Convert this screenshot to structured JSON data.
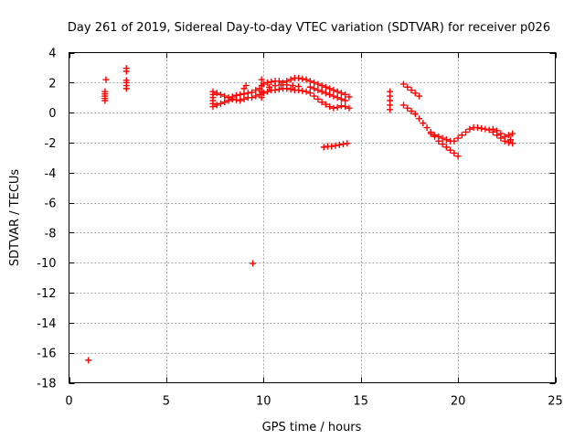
{
  "chart_data": {
    "type": "scatter",
    "title": "Day 261 of 2019, Sidereal Day-to-day VTEC variation (SDTVAR) for receiver p026",
    "xlabel": "GPS time / hours",
    "ylabel": "SDTVAR / TECUs",
    "xlim": [
      0,
      25
    ],
    "ylim": [
      -18,
      4
    ],
    "xticks": [
      0,
      5,
      10,
      15,
      20,
      25
    ],
    "yticks": [
      -18,
      -16,
      -14,
      -12,
      -10,
      -8,
      -6,
      -4,
      -2,
      0,
      2,
      4
    ],
    "grid": true,
    "marker": "+",
    "series_color": "#ff0000",
    "series": [
      {
        "name": "SDTVAR",
        "points": [
          [
            1.0,
            -16.5
          ],
          [
            9.45,
            -10.05
          ],
          [
            1.85,
            0.8
          ],
          [
            1.85,
            0.95
          ],
          [
            1.85,
            1.1
          ],
          [
            1.85,
            1.25
          ],
          [
            1.85,
            1.4
          ],
          [
            1.9,
            2.2
          ],
          [
            2.95,
            1.6
          ],
          [
            2.95,
            1.8
          ],
          [
            2.95,
            2.0
          ],
          [
            2.95,
            2.15
          ],
          [
            2.95,
            2.75
          ],
          [
            2.95,
            2.95
          ],
          [
            7.4,
            0.4
          ],
          [
            7.4,
            0.6
          ],
          [
            7.4,
            0.8
          ],
          [
            7.4,
            1.0
          ],
          [
            7.4,
            1.2
          ],
          [
            7.4,
            1.4
          ],
          [
            7.6,
            0.5
          ],
          [
            7.8,
            0.6
          ],
          [
            8.0,
            0.7
          ],
          [
            8.2,
            0.8
          ],
          [
            8.4,
            0.9
          ],
          [
            8.6,
            0.85
          ],
          [
            7.6,
            1.3
          ],
          [
            7.8,
            1.2
          ],
          [
            8.0,
            1.1
          ],
          [
            8.2,
            1.0
          ],
          [
            8.4,
            1.05
          ],
          [
            8.6,
            1.15
          ],
          [
            8.8,
            0.8
          ],
          [
            9.0,
            0.9
          ],
          [
            9.2,
            1.0
          ],
          [
            9.4,
            1.0
          ],
          [
            9.6,
            1.1
          ],
          [
            9.8,
            1.2
          ],
          [
            8.8,
            1.2
          ],
          [
            9.0,
            1.25
          ],
          [
            9.2,
            1.3
          ],
          [
            9.4,
            1.35
          ],
          [
            9.6,
            1.5
          ],
          [
            9.8,
            1.6
          ],
          [
            9.1,
            1.8
          ],
          [
            9.0,
            1.6
          ],
          [
            9.9,
            1.0
          ],
          [
            9.9,
            1.4
          ],
          [
            9.9,
            1.8
          ],
          [
            9.9,
            2.2
          ],
          [
            10.0,
            1.3
          ],
          [
            10.2,
            1.4
          ],
          [
            10.4,
            1.5
          ],
          [
            10.6,
            1.5
          ],
          [
            10.8,
            1.55
          ],
          [
            11.0,
            1.6
          ],
          [
            11.2,
            1.6
          ],
          [
            11.4,
            1.55
          ],
          [
            11.6,
            1.5
          ],
          [
            11.8,
            1.5
          ],
          [
            12.0,
            1.45
          ],
          [
            12.2,
            1.4
          ],
          [
            10.0,
            1.9
          ],
          [
            10.2,
            2.0
          ],
          [
            10.4,
            2.05
          ],
          [
            10.6,
            2.1
          ],
          [
            10.8,
            2.1
          ],
          [
            11.0,
            2.0
          ],
          [
            11.2,
            2.1
          ],
          [
            11.4,
            2.2
          ],
          [
            11.6,
            2.3
          ],
          [
            11.8,
            2.3
          ],
          [
            12.0,
            2.25
          ],
          [
            12.2,
            2.2
          ],
          [
            10.3,
            1.7
          ],
          [
            10.6,
            1.8
          ],
          [
            10.9,
            1.85
          ],
          [
            11.2,
            1.85
          ],
          [
            11.5,
            1.8
          ],
          [
            11.8,
            1.75
          ],
          [
            12.4,
            2.1
          ],
          [
            12.6,
            2.0
          ],
          [
            12.8,
            1.9
          ],
          [
            13.0,
            1.8
          ],
          [
            13.2,
            1.7
          ],
          [
            13.4,
            1.6
          ],
          [
            13.6,
            1.5
          ],
          [
            13.8,
            1.4
          ],
          [
            14.0,
            1.3
          ],
          [
            14.2,
            1.2
          ],
          [
            14.4,
            1.05
          ],
          [
            12.4,
            1.7
          ],
          [
            12.6,
            1.6
          ],
          [
            12.8,
            1.5
          ],
          [
            13.0,
            1.4
          ],
          [
            13.2,
            1.3
          ],
          [
            13.4,
            1.2
          ],
          [
            13.6,
            1.1
          ],
          [
            13.8,
            1.0
          ],
          [
            14.0,
            0.9
          ],
          [
            14.2,
            0.8
          ],
          [
            12.4,
            1.3
          ],
          [
            12.6,
            1.1
          ],
          [
            12.8,
            0.9
          ],
          [
            13.0,
            0.7
          ],
          [
            13.2,
            0.55
          ],
          [
            13.4,
            0.4
          ],
          [
            13.6,
            0.3
          ],
          [
            13.8,
            0.35
          ],
          [
            14.0,
            0.45
          ],
          [
            14.2,
            0.4
          ],
          [
            14.4,
            0.3
          ],
          [
            13.1,
            -2.3
          ],
          [
            13.3,
            -2.25
          ],
          [
            13.5,
            -2.25
          ],
          [
            13.7,
            -2.2
          ],
          [
            13.9,
            -2.15
          ],
          [
            14.1,
            -2.1
          ],
          [
            14.3,
            -2.05
          ],
          [
            16.5,
            0.2
          ],
          [
            16.5,
            0.5
          ],
          [
            16.5,
            0.8
          ],
          [
            16.5,
            1.1
          ],
          [
            16.5,
            1.4
          ],
          [
            17.2,
            1.9
          ],
          [
            17.4,
            1.7
          ],
          [
            17.6,
            1.5
          ],
          [
            17.8,
            1.3
          ],
          [
            18.0,
            1.1
          ],
          [
            17.2,
            0.5
          ],
          [
            17.4,
            0.3
          ],
          [
            17.6,
            0.1
          ],
          [
            17.8,
            -0.1
          ],
          [
            18.0,
            -0.4
          ],
          [
            18.2,
            -0.7
          ],
          [
            18.4,
            -1.0
          ],
          [
            18.6,
            -1.3
          ],
          [
            18.8,
            -1.5
          ],
          [
            19.0,
            -1.6
          ],
          [
            19.2,
            -1.7
          ],
          [
            19.4,
            -1.8
          ],
          [
            19.6,
            -1.9
          ],
          [
            18.6,
            -1.4
          ],
          [
            18.8,
            -1.6
          ],
          [
            19.0,
            -1.9
          ],
          [
            19.2,
            -2.1
          ],
          [
            19.4,
            -2.3
          ],
          [
            19.6,
            -2.5
          ],
          [
            19.8,
            -2.7
          ],
          [
            20.0,
            -2.9
          ],
          [
            19.8,
            -1.9
          ],
          [
            20.0,
            -1.7
          ],
          [
            20.2,
            -1.5
          ],
          [
            20.4,
            -1.3
          ],
          [
            20.6,
            -1.1
          ],
          [
            20.8,
            -1.0
          ],
          [
            21.0,
            -1.0
          ],
          [
            21.2,
            -1.05
          ],
          [
            21.4,
            -1.1
          ],
          [
            21.6,
            -1.15
          ],
          [
            21.8,
            -1.3
          ],
          [
            22.0,
            -1.5
          ],
          [
            22.2,
            -1.7
          ],
          [
            22.4,
            -1.9
          ],
          [
            22.6,
            -2.0
          ],
          [
            22.8,
            -2.05
          ],
          [
            21.8,
            -1.1
          ],
          [
            22.0,
            -1.2
          ],
          [
            22.2,
            -1.4
          ],
          [
            22.4,
            -1.6
          ],
          [
            22.6,
            -1.5
          ],
          [
            22.8,
            -1.4
          ],
          [
            22.7,
            -1.8
          ]
        ]
      }
    ]
  }
}
